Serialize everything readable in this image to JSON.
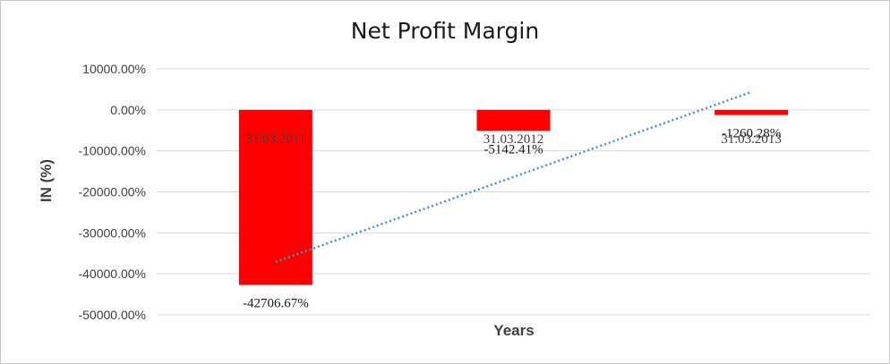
{
  "chart_data": {
    "type": "bar",
    "title": "Net Profit Margin",
    "xlabel": "Years",
    "ylabel": "IN (%)",
    "categories": [
      "31.03.2011",
      "31.03.2012",
      "31.03.2013"
    ],
    "values": [
      -42706.67,
      -5142.41,
      -1260.28
    ],
    "data_labels": [
      "-42706.67%",
      "-5142.41%",
      "-1260.28%"
    ],
    "ylim": [
      -50000,
      10000
    ],
    "yticks": [
      10000,
      0,
      -10000,
      -20000,
      -30000,
      -40000,
      -50000
    ],
    "ytick_labels": [
      "10000.00%",
      "0.00%",
      "-10000.00%",
      "-20000.00%",
      "-30000.00%",
      "-40000.00%",
      "-50000.00%"
    ],
    "grid": true,
    "bar_color": "#ff0000",
    "trendline": {
      "type": "linear",
      "style": "dotted",
      "color": "#4a90c8"
    },
    "legend": "none"
  }
}
